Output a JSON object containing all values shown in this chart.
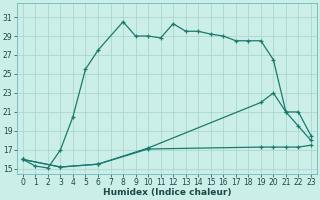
{
  "xlabel": "Humidex (Indice chaleur)",
  "bg_color": "#cceee8",
  "line_color": "#1a7a6e",
  "grid_color": "#aad8d0",
  "xlim": [
    -0.5,
    23.5
  ],
  "ylim": [
    14.5,
    32.5
  ],
  "xticks": [
    0,
    1,
    2,
    3,
    4,
    5,
    6,
    7,
    8,
    9,
    10,
    11,
    12,
    13,
    14,
    15,
    16,
    17,
    18,
    19,
    20,
    21,
    22,
    23
  ],
  "yticks": [
    15,
    17,
    19,
    21,
    23,
    25,
    27,
    29,
    31
  ],
  "line1_x": [
    0,
    1,
    2,
    3,
    4,
    5,
    6,
    8,
    9,
    10,
    11,
    12,
    13,
    14,
    15,
    16,
    17,
    18,
    19,
    20,
    21,
    22,
    23
  ],
  "line1_y": [
    16.0,
    15.3,
    15.1,
    17.0,
    20.5,
    25.5,
    27.5,
    30.5,
    29.0,
    29.0,
    28.8,
    30.3,
    29.5,
    29.5,
    29.2,
    29.0,
    28.5,
    28.5,
    28.5,
    26.5,
    21.0,
    21.0,
    18.5
  ],
  "line2_x": [
    0,
    3,
    6,
    10,
    19,
    20,
    21,
    22,
    23
  ],
  "line2_y": [
    16.0,
    15.2,
    15.5,
    17.2,
    22.0,
    23.0,
    21.0,
    19.5,
    18.0
  ],
  "line3_x": [
    0,
    3,
    6,
    10,
    19,
    20,
    21,
    22,
    23
  ],
  "line3_y": [
    16.0,
    15.2,
    15.5,
    17.1,
    17.3,
    17.3,
    17.3,
    17.3,
    17.5
  ],
  "marker": "+",
  "lw": 0.9,
  "ms": 3.0,
  "mew": 0.9,
  "tick_fontsize": 5.5,
  "xlabel_fontsize": 6.5
}
